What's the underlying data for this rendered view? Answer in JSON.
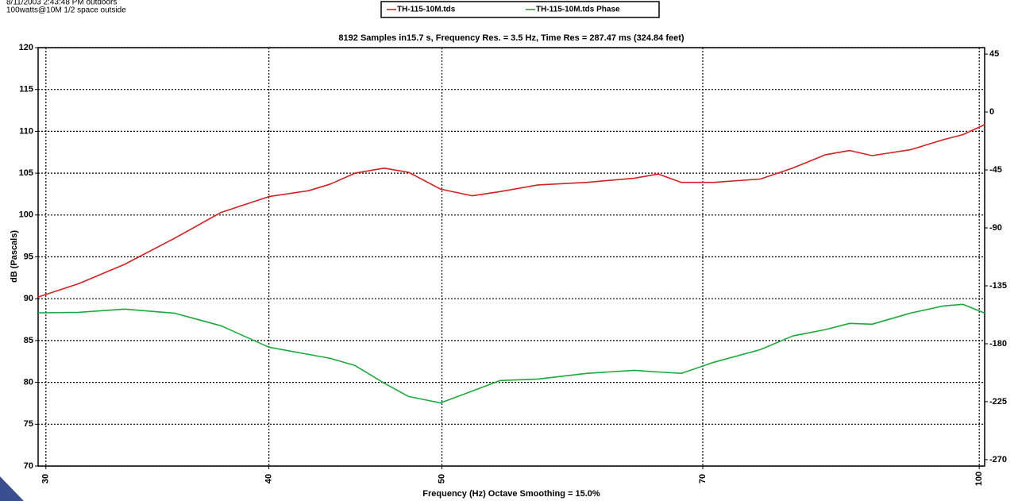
{
  "chart_data": {
    "type": "line",
    "notes": [
      "8/11/2003 2:43:48 PM outdoors",
      "100watts@10M 1/2 space outside"
    ],
    "title": "8192 Samples in15.7 s, Frequency Res. = 3.5 Hz, Time Res = 287.47 ms (324.84 feet)",
    "x_label": "Frequency (Hz) Octave Smoothing = 15.0%",
    "y_label": "dB (Pascals)",
    "x_log": true,
    "grid": true,
    "legend": "top",
    "x": [
      29.7,
      31.3,
      33.2,
      35.4,
      37.6,
      40.0,
      42.1,
      43.3,
      44.7,
      46.4,
      47.9,
      49.9,
      52.0,
      53.9,
      56.6,
      60.3,
      64.1,
      66.1,
      68.1,
      71.0,
      75.4,
      78.6,
      82.0,
      84.6,
      87.1,
      91.5,
      95.5,
      97.9,
      100.7
    ],
    "series": [
      {
        "name": "TH-115-10M.tds",
        "color": "#d42020",
        "values": [
          90.2,
          91.8,
          94.1,
          97.2,
          100.3,
          102.2,
          102.9,
          103.7,
          105.0,
          105.6,
          105.1,
          103.1,
          102.3,
          102.8,
          103.6,
          103.9,
          104.4,
          104.9,
          103.9,
          103.9,
          104.3,
          105.6,
          107.2,
          107.7,
          107.1,
          107.8,
          109.0,
          109.6,
          110.8
        ]
      },
      {
        "name": "TH-115-10M.tds Phase",
        "color": "#1aaa3c",
        "axis": "y2",
        "values": [
          -156,
          -155.6,
          -153.1,
          -156.2,
          -166,
          -182.7,
          -188.3,
          -191.4,
          -196.9,
          -210.5,
          -221,
          -226,
          -216.7,
          -208.6,
          -207.4,
          -203,
          -200.6,
          -201.9,
          -203,
          -194.4,
          -184.6,
          -174,
          -169,
          -164.2,
          -164.8,
          -156.2,
          -150.6,
          -149.4,
          -156.2
        ]
      }
    ],
    "xlim": [
      29.7,
      100.7
    ],
    "xticks": [
      30,
      40,
      50,
      70,
      100
    ],
    "ylim": [
      70,
      120
    ],
    "yticks": [
      70,
      75,
      80,
      85,
      90,
      95,
      100,
      105,
      110,
      115,
      120
    ],
    "y2lim": [
      -275,
      50
    ],
    "y2ticks": [
      45,
      0,
      -45,
      -90,
      -135,
      -180,
      -225,
      -270
    ]
  }
}
